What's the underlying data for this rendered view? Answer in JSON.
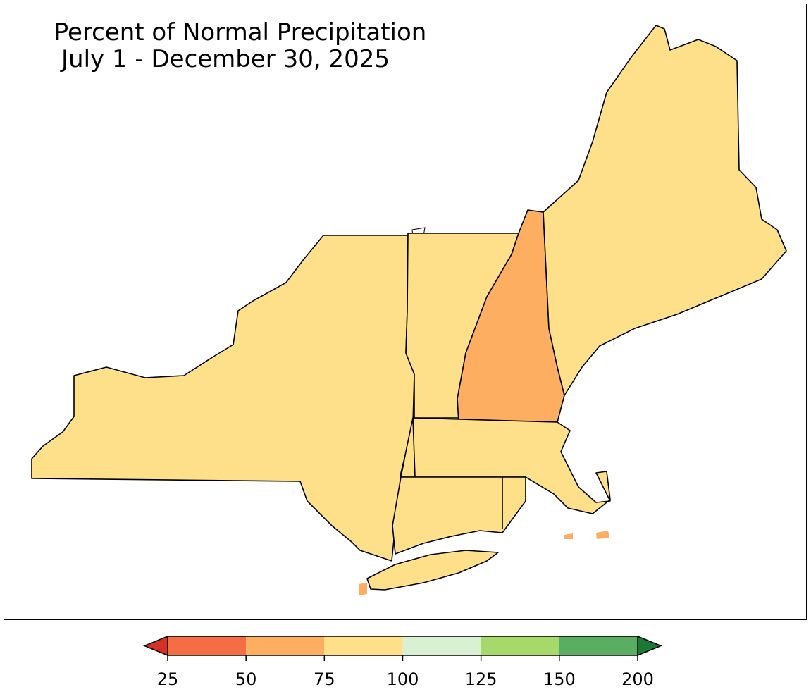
{
  "title": {
    "line1": "Percent of Normal Precipitation",
    "line2": "July 1 - December 30, 2025"
  },
  "legend": {
    "ticks": [
      "25",
      "50",
      "75",
      "100",
      "125",
      "150",
      "200"
    ],
    "colors": [
      "#f46d43",
      "#fdae61",
      "#fee08b",
      "#d9f0d3",
      "#a6d96a",
      "#5aae61"
    ],
    "under_color": "#d73027",
    "over_color": "#1b7837"
  },
  "map_colors": {
    "wet_light": "#d9f0d3",
    "near_normal": "#fee08b",
    "dry": "#fdae61",
    "very_dry": "#f46d43",
    "wet": "#5aae61",
    "state_border": "#000000",
    "county_border": "#b8a878"
  }
}
